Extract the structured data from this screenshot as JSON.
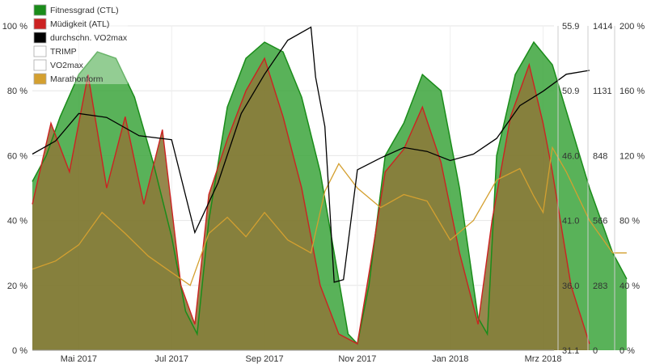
{
  "chart_data": {
    "type": "area",
    "legend": {
      "placement": "top-left",
      "items": [
        {
          "label": "Fitnessgrad (CTL)",
          "color": "#1a8c1a"
        },
        {
          "label": "Müdigkeit (ATL)",
          "color": "#cc2222"
        },
        {
          "label": "durchschn. VO2max",
          "color": "#000000"
        },
        {
          "label": "TRIMP",
          "color": "#ffffff"
        },
        {
          "label": "VO2max",
          "color": "#ffffff"
        },
        {
          "label": "Marathonform",
          "color": "#d4a030"
        }
      ]
    },
    "x_labels": [
      "Mai 2017",
      "Jul 2017",
      "Sep 2017",
      "Nov 2017",
      "Jan 2018",
      "Mrz 2018"
    ],
    "axes": {
      "left": {
        "ticks": [
          "0 %",
          "20 %",
          "40 %",
          "60 %",
          "80 %",
          "100 %"
        ],
        "range": [
          0,
          100
        ]
      },
      "vo2max": {
        "ticks": [
          "31.1",
          "36.0",
          "41.0",
          "46.0",
          "50.9",
          "55.9"
        ],
        "range": [
          31.1,
          55.9
        ]
      },
      "trimp": {
        "ticks": [
          "0",
          "283",
          "566",
          "848",
          "1131",
          "1414"
        ],
        "range": [
          0,
          1414
        ]
      },
      "right": {
        "ticks": [
          "0 %",
          "40 %",
          "80 %",
          "120 %",
          "160 %",
          "200 %"
        ],
        "range": [
          0,
          200
        ]
      }
    },
    "grid": true,
    "x_range_months": [
      0,
      11.2
    ],
    "series": [
      {
        "name": "Fitnessgrad (CTL)",
        "axis": "left",
        "color": "#1a8c1a",
        "points": [
          [
            0,
            52
          ],
          [
            0.3,
            60
          ],
          [
            0.6,
            72
          ],
          [
            1.0,
            85
          ],
          [
            1.4,
            92
          ],
          [
            1.8,
            90
          ],
          [
            2.2,
            78
          ],
          [
            2.6,
            58
          ],
          [
            3.0,
            35
          ],
          [
            3.3,
            12
          ],
          [
            3.55,
            5
          ],
          [
            3.8,
            40
          ],
          [
            4.2,
            75
          ],
          [
            4.6,
            90
          ],
          [
            5.0,
            95
          ],
          [
            5.4,
            92
          ],
          [
            5.8,
            78
          ],
          [
            6.2,
            55
          ],
          [
            6.5,
            30
          ],
          [
            6.8,
            5
          ],
          [
            7.0,
            2
          ],
          [
            7.25,
            20
          ],
          [
            7.6,
            60
          ],
          [
            8.0,
            70
          ],
          [
            8.4,
            85
          ],
          [
            8.8,
            80
          ],
          [
            9.2,
            50
          ],
          [
            9.6,
            10
          ],
          [
            9.8,
            5
          ],
          [
            10.0,
            60
          ],
          [
            10.4,
            85
          ],
          [
            10.8,
            95
          ],
          [
            11.2,
            88
          ],
          [
            12.0,
            50
          ],
          [
            12.5,
            30
          ],
          [
            12.8,
            22
          ]
        ]
      },
      {
        "name": "Müdigkeit (ATL)",
        "axis": "left",
        "color": "#cc2222",
        "points": [
          [
            0,
            45
          ],
          [
            0.4,
            70
          ],
          [
            0.8,
            55
          ],
          [
            1.2,
            85
          ],
          [
            1.6,
            50
          ],
          [
            2.0,
            72
          ],
          [
            2.4,
            45
          ],
          [
            2.8,
            68
          ],
          [
            3.2,
            20
          ],
          [
            3.5,
            8
          ],
          [
            3.8,
            48
          ],
          [
            4.2,
            65
          ],
          [
            4.6,
            80
          ],
          [
            5.0,
            90
          ],
          [
            5.4,
            72
          ],
          [
            5.8,
            50
          ],
          [
            6.2,
            20
          ],
          [
            6.6,
            5
          ],
          [
            7.0,
            2
          ],
          [
            7.3,
            28
          ],
          [
            7.6,
            55
          ],
          [
            8.0,
            62
          ],
          [
            8.4,
            75
          ],
          [
            8.8,
            58
          ],
          [
            9.2,
            30
          ],
          [
            9.6,
            8
          ],
          [
            9.9,
            40
          ],
          [
            10.3,
            72
          ],
          [
            10.7,
            88
          ],
          [
            11.0,
            70
          ],
          [
            11.2,
            55
          ],
          [
            11.6,
            20
          ],
          [
            12.0,
            2
          ]
        ]
      },
      {
        "name": "durchschn. VO2max",
        "axis": "vo2max",
        "color": "#000000",
        "points": [
          [
            0,
            46.1
          ],
          [
            0.5,
            47.1
          ],
          [
            1.0,
            49.2
          ],
          [
            1.6,
            48.9
          ],
          [
            2.3,
            47.5
          ],
          [
            3.0,
            47.2
          ],
          [
            3.5,
            40.1
          ],
          [
            4.0,
            43.9
          ],
          [
            4.5,
            49.2
          ],
          [
            5.0,
            52.2
          ],
          [
            5.5,
            54.8
          ],
          [
            6.0,
            55.8
          ],
          [
            6.1,
            52.0
          ],
          [
            6.3,
            48.2
          ],
          [
            6.5,
            36.3
          ],
          [
            6.7,
            36.5
          ],
          [
            7.0,
            44.9
          ],
          [
            7.5,
            45.8
          ],
          [
            8.0,
            46.6
          ],
          [
            8.5,
            46.3
          ],
          [
            9.0,
            45.6
          ],
          [
            9.5,
            46.1
          ],
          [
            10.0,
            47.3
          ],
          [
            10.5,
            49.8
          ],
          [
            11.0,
            50.9
          ],
          [
            11.5,
            52.2
          ],
          [
            12.0,
            52.5
          ]
        ]
      },
      {
        "name": "Marathonform",
        "axis": "right",
        "color": "#d4a030",
        "points": [
          [
            0,
            50
          ],
          [
            0.5,
            55
          ],
          [
            1.0,
            65
          ],
          [
            1.5,
            85
          ],
          [
            2.0,
            72
          ],
          [
            2.5,
            58
          ],
          [
            3.0,
            48
          ],
          [
            3.4,
            40
          ],
          [
            3.8,
            72
          ],
          [
            4.2,
            82
          ],
          [
            4.6,
            70
          ],
          [
            5.0,
            85
          ],
          [
            5.5,
            68
          ],
          [
            6.0,
            60
          ],
          [
            6.3,
            98
          ],
          [
            6.6,
            115
          ],
          [
            7.0,
            100
          ],
          [
            7.5,
            88
          ],
          [
            8.0,
            96
          ],
          [
            8.5,
            92
          ],
          [
            9.0,
            68
          ],
          [
            9.5,
            80
          ],
          [
            10.0,
            105
          ],
          [
            10.5,
            112
          ],
          [
            10.8,
            95
          ],
          [
            11.0,
            85
          ],
          [
            11.2,
            125
          ],
          [
            11.5,
            110
          ],
          [
            12.0,
            80
          ],
          [
            12.5,
            60
          ],
          [
            12.8,
            60
          ]
        ]
      }
    ]
  }
}
